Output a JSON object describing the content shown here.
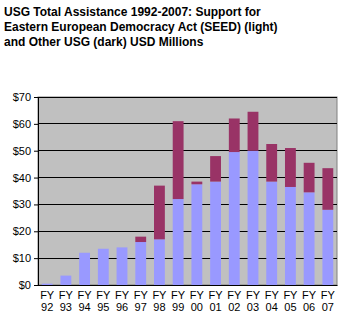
{
  "chart_data": {
    "type": "bar",
    "title": "USG Total Assistance 1992-2007: Support for Eastern European Democracy Act (SEED) (light) and Other USG (dark) USD Millions",
    "categories": [
      "FY 92",
      "FY 93",
      "FY 94",
      "FY 95",
      "FY 96",
      "FY 97",
      "FY 98",
      "FY 99",
      "FY 00",
      "FY 01",
      "FY 02",
      "FY 03",
      "FY 04",
      "FY 05",
      "FY 06",
      "FY 07"
    ],
    "series": [
      {
        "color": "#9999ff",
        "values": [
          0.5,
          3.5,
          12,
          13.5,
          14,
          16,
          17,
          32,
          37.5,
          38.5,
          49.5,
          50,
          38.5,
          36.5,
          34.5,
          28
        ]
      },
      {
        "color": "#993366",
        "values": [
          0,
          0,
          0,
          0,
          0,
          2,
          20,
          29,
          1,
          9.5,
          12.5,
          14.5,
          14,
          14.5,
          11,
          15.5
        ]
      }
    ],
    "stacked": true,
    "grid": true,
    "ylim": [
      0,
      70
    ],
    "yticks": [
      {
        "value": 0,
        "label": "$0"
      },
      {
        "value": 10,
        "label": "$10"
      },
      {
        "value": 20,
        "label": "$20"
      },
      {
        "value": 30,
        "label": "$30"
      },
      {
        "value": 40,
        "label": "$40"
      },
      {
        "value": 50,
        "label": "$50"
      },
      {
        "value": 60,
        "label": "$60"
      },
      {
        "value": 70,
        "label": "$70"
      }
    ]
  }
}
